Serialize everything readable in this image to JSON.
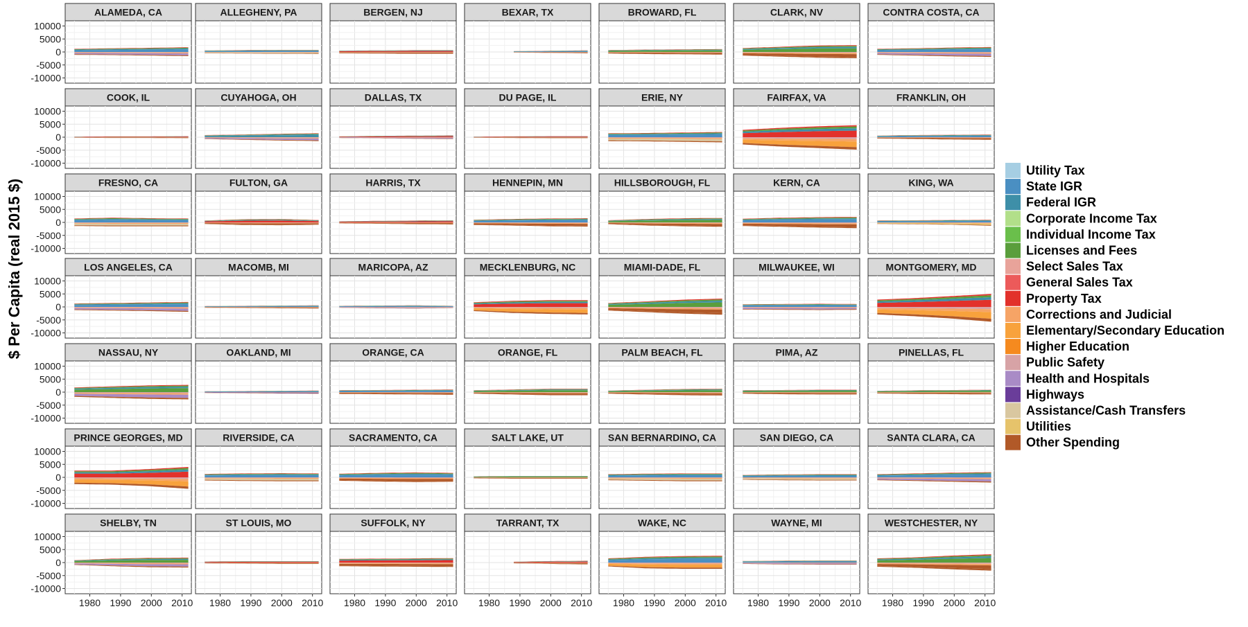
{
  "chart_data": {
    "type": "area",
    "ylabel": "$ Per Capita (real 2015 $)",
    "xlabel": "",
    "x_range": [
      1972,
      2013
    ],
    "x_ticks": [
      1980,
      1990,
      2000,
      2010
    ],
    "ylim": [
      -12000,
      12000
    ],
    "y_ticks": [
      10000,
      5000,
      0,
      -5000,
      -10000
    ],
    "grid": true,
    "legend_position": "right",
    "legend": [
      {
        "name": "Utility Tax",
        "color": "#a6cee3"
      },
      {
        "name": "State IGR",
        "color": "#4a8fc2"
      },
      {
        "name": "Federal IGR",
        "color": "#3e8fa8"
      },
      {
        "name": "Corporate Income Tax",
        "color": "#b2df8a"
      },
      {
        "name": "Individual Income Tax",
        "color": "#6abf4b"
      },
      {
        "name": "Licenses and Fees",
        "color": "#5a9e3c"
      },
      {
        "name": "Select Sales Tax",
        "color": "#e8a39a"
      },
      {
        "name": "General Sales Tax",
        "color": "#ec5a5a"
      },
      {
        "name": "Property Tax",
        "color": "#e2312b"
      },
      {
        "name": "Corrections and Judicial",
        "color": "#f6a466"
      },
      {
        "name": "Elementary/Secondary Education",
        "color": "#f8a23c"
      },
      {
        "name": "Higher Education",
        "color": "#f58a1f"
      },
      {
        "name": "Public Safety",
        "color": "#d7a3a6"
      },
      {
        "name": "Health and Hospitals",
        "color": "#a98bc6"
      },
      {
        "name": "Highways",
        "color": "#6a3d9a"
      },
      {
        "name": "Assistance/Cash Transfers",
        "color": "#d9c7a0"
      },
      {
        "name": "Utilities",
        "color": "#e6c36b"
      },
      {
        "name": "Other Spending",
        "color": "#b15928"
      }
    ],
    "panels": [
      {
        "title": "ALAMEDA, CA",
        "start": 1975,
        "rev": [
          1200,
          1400,
          1600,
          1800
        ],
        "spend": [
          -1100,
          -1200,
          -1400,
          -1600
        ],
        "dom_rev": "sig",
        "dom_spend": "health"
      },
      {
        "title": "ALLEGHENY, PA",
        "start": 1975,
        "rev": [
          600,
          700,
          800,
          800
        ],
        "spend": [
          -500,
          -600,
          -700,
          -800
        ],
        "dom_rev": "sig",
        "dom_spend": "assist"
      },
      {
        "title": "BERGEN, NJ",
        "start": 1975,
        "rev": [
          500,
          600,
          700,
          700
        ],
        "spend": [
          -500,
          -600,
          -700,
          -700
        ],
        "dom_rev": "prop",
        "dom_spend": "other"
      },
      {
        "title": "BEXAR, TX",
        "start": 1988,
        "rev": [
          300,
          400,
          500,
          600
        ],
        "spend": [
          -200,
          -300,
          -400,
          -500
        ],
        "dom_rev": "sig",
        "dom_spend": "other"
      },
      {
        "title": "BROWARD, FL",
        "start": 1975,
        "rev": [
          700,
          900,
          1000,
          1100
        ],
        "spend": [
          -600,
          -800,
          -900,
          -1000
        ],
        "dom_rev": "lic",
        "dom_spend": "other"
      },
      {
        "title": "CLARK, NV",
        "start": 1975,
        "rev": [
          1500,
          2000,
          2500,
          2600
        ],
        "spend": [
          -1400,
          -1800,
          -2200,
          -2400
        ],
        "dom_rev": "lic",
        "dom_spend": "other"
      },
      {
        "title": "CONTRA COSTA, CA",
        "start": 1975,
        "rev": [
          1200,
          1400,
          1700,
          1900
        ],
        "spend": [
          -1100,
          -1400,
          -1700,
          -1900
        ],
        "dom_rev": "sig",
        "dom_spend": "health"
      },
      {
        "title": "COOK, IL",
        "start": 1975,
        "rev": [
          200,
          300,
          300,
          400
        ],
        "spend": [
          -200,
          -300,
          -300,
          -400
        ],
        "dom_rev": "prop",
        "dom_spend": "other"
      },
      {
        "title": "CUYAHOGA, OH",
        "start": 1975,
        "rev": [
          800,
          1000,
          1300,
          1500
        ],
        "spend": [
          -700,
          -1000,
          -1300,
          -1500
        ],
        "dom_rev": "fig",
        "dom_spend": "health"
      },
      {
        "title": "DALLAS, TX",
        "start": 1975,
        "rev": [
          300,
          500,
          600,
          700
        ],
        "spend": [
          -300,
          -400,
          -600,
          -700
        ],
        "dom_rev": "prop",
        "dom_spend": "health"
      },
      {
        "title": "DU PAGE, IL",
        "start": 1975,
        "rev": [
          200,
          300,
          400,
          400
        ],
        "spend": [
          -200,
          -300,
          -400,
          -400
        ],
        "dom_rev": "prop",
        "dom_spend": "other"
      },
      {
        "title": "ERIE, NY",
        "start": 1975,
        "rev": [
          1500,
          1600,
          1800,
          2000
        ],
        "spend": [
          -1500,
          -1600,
          -1800,
          -2000
        ],
        "dom_rev": "sig",
        "dom_spend": "assist"
      },
      {
        "title": "FAIRFAX, VA",
        "start": 1975,
        "rev": [
          2800,
          3600,
          4200,
          4600
        ],
        "spend": [
          -2800,
          -3600,
          -4200,
          -4800
        ],
        "dom_rev": "prop",
        "dom_spend": "educ"
      },
      {
        "title": "FRANKLIN, OH",
        "start": 1975,
        "rev": [
          600,
          800,
          900,
          1000
        ],
        "spend": [
          -500,
          -700,
          -900,
          -1000
        ],
        "dom_rev": "sig",
        "dom_spend": "other"
      },
      {
        "title": "FRESNO, CA",
        "start": 1975,
        "rev": [
          1500,
          1800,
          1600,
          1500
        ],
        "spend": [
          -1400,
          -1500,
          -1500,
          -1500
        ],
        "dom_rev": "sig",
        "dom_spend": "assist"
      },
      {
        "title": "FULTON, GA",
        "start": 1975,
        "rev": [
          700,
          1200,
          1300,
          900
        ],
        "spend": [
          -600,
          -1000,
          -1100,
          -900
        ],
        "dom_rev": "prop",
        "dom_spend": "other"
      },
      {
        "title": "HARRIS, TX",
        "start": 1975,
        "rev": [
          400,
          600,
          700,
          800
        ],
        "spend": [
          -400,
          -500,
          -700,
          -800
        ],
        "dom_rev": "prop",
        "dom_spend": "other"
      },
      {
        "title": "HENNEPIN, MN",
        "start": 1975,
        "rev": [
          1000,
          1300,
          1500,
          1600
        ],
        "spend": [
          -1000,
          -1200,
          -1500,
          -1600
        ],
        "dom_rev": "sig",
        "dom_spend": "other"
      },
      {
        "title": "HILLSBOROUGH, FL",
        "start": 1975,
        "rev": [
          800,
          1300,
          1600,
          1700
        ],
        "spend": [
          -700,
          -1200,
          -1500,
          -1700
        ],
        "dom_rev": "lic",
        "dom_spend": "other"
      },
      {
        "title": "KERN, CA",
        "start": 1975,
        "rev": [
          1400,
          1800,
          2000,
          2100
        ],
        "spend": [
          -1400,
          -1700,
          -2000,
          -2200
        ],
        "dom_rev": "sig",
        "dom_spend": "other"
      },
      {
        "title": "KING, WA",
        "start": 1975,
        "rev": [
          700,
          800,
          900,
          1000
        ],
        "spend": [
          -600,
          -700,
          -900,
          -1300
        ],
        "dom_rev": "sig",
        "dom_spend": "util"
      },
      {
        "title": "LOS ANGELES, CA",
        "start": 1975,
        "rev": [
          1300,
          1500,
          1700,
          1900
        ],
        "spend": [
          -1200,
          -1400,
          -1600,
          -1900
        ],
        "dom_rev": "sig",
        "dom_spend": "health"
      },
      {
        "title": "MACOMB, MI",
        "start": 1975,
        "rev": [
          300,
          400,
          500,
          600
        ],
        "spend": [
          -300,
          -400,
          -500,
          -600
        ],
        "dom_rev": "sig",
        "dom_spend": "other"
      },
      {
        "title": "MARICOPA, AZ",
        "start": 1975,
        "rev": [
          400,
          500,
          600,
          400
        ],
        "spend": [
          -300,
          -500,
          -600,
          -400
        ],
        "dom_rev": "sig",
        "dom_spend": "health"
      },
      {
        "title": "MECKLENBURG, NC",
        "start": 1975,
        "rev": [
          1800,
          2300,
          2600,
          2600
        ],
        "spend": [
          -1600,
          -2300,
          -2700,
          -2900
        ],
        "dom_rev": "prop",
        "dom_spend": "educ"
      },
      {
        "title": "MIAMI-DADE, FL",
        "start": 1975,
        "rev": [
          1500,
          2100,
          2800,
          3200
        ],
        "spend": [
          -1400,
          -2000,
          -2600,
          -3000
        ],
        "dom_rev": "lic",
        "dom_spend": "other"
      },
      {
        "title": "MILWAUKEE, WI",
        "start": 1975,
        "rev": [
          1000,
          1100,
          1200,
          1100
        ],
        "spend": [
          -1000,
          -1100,
          -1200,
          -1100
        ],
        "dom_rev": "sig",
        "dom_spend": "health"
      },
      {
        "title": "MONTGOMERY, MD",
        "start": 1975,
        "rev": [
          2800,
          3400,
          4200,
          5000
        ],
        "spend": [
          -2900,
          -3600,
          -4500,
          -5700
        ],
        "dom_rev": "prop",
        "dom_spend": "educ"
      },
      {
        "title": "NASSAU, NY",
        "start": 1975,
        "rev": [
          1800,
          2200,
          2600,
          2800
        ],
        "spend": [
          -1800,
          -2200,
          -2600,
          -2800
        ],
        "dom_rev": "lic",
        "dom_spend": "health"
      },
      {
        "title": "OAKLAND, MI",
        "start": 1975,
        "rev": [
          300,
          400,
          500,
          600
        ],
        "spend": [
          -300,
          -400,
          -500,
          -600
        ],
        "dom_rev": "sig",
        "dom_spend": "hwy"
      },
      {
        "title": "ORANGE, CA",
        "start": 1975,
        "rev": [
          700,
          800,
          900,
          1000
        ],
        "spend": [
          -700,
          -800,
          -900,
          -1000
        ],
        "dom_rev": "sig",
        "dom_spend": "other"
      },
      {
        "title": "ORANGE, FL",
        "start": 1975,
        "rev": [
          700,
          1000,
          1300,
          1300
        ],
        "spend": [
          -600,
          -900,
          -1200,
          -1200
        ],
        "dom_rev": "lic",
        "dom_spend": "other"
      },
      {
        "title": "PALM BEACH, FL",
        "start": 1975,
        "rev": [
          600,
          900,
          1200,
          1300
        ],
        "spend": [
          -600,
          -900,
          -1200,
          -1300
        ],
        "dom_rev": "lic",
        "dom_spend": "other"
      },
      {
        "title": "PIMA, AZ",
        "start": 1975,
        "rev": [
          700,
          800,
          900,
          900
        ],
        "spend": [
          -600,
          -800,
          -900,
          -900
        ],
        "dom_rev": "lic",
        "dom_spend": "other"
      },
      {
        "title": "PINELLAS, FL",
        "start": 1975,
        "rev": [
          500,
          700,
          800,
          900
        ],
        "spend": [
          -500,
          -700,
          -800,
          -900
        ],
        "dom_rev": "lic",
        "dom_spend": "other"
      },
      {
        "title": "PRINCE GEORGES, MD",
        "start": 1975,
        "rev": [
          2600,
          2600,
          3200,
          4000
        ],
        "spend": [
          -2600,
          -2800,
          -3400,
          -4400
        ],
        "dom_rev": "prop",
        "dom_spend": "educ"
      },
      {
        "title": "RIVERSIDE, CA",
        "start": 1975,
        "rev": [
          1300,
          1500,
          1600,
          1500
        ],
        "spend": [
          -1200,
          -1400,
          -1500,
          -1500
        ],
        "dom_rev": "sig",
        "dom_spend": "assist"
      },
      {
        "title": "SACRAMENTO, CA",
        "start": 1975,
        "rev": [
          1400,
          1700,
          1900,
          1700
        ],
        "spend": [
          -1300,
          -1600,
          -1800,
          -1700
        ],
        "dom_rev": "sig",
        "dom_spend": "other"
      },
      {
        "title": "SALT LAKE, UT",
        "start": 1975,
        "rev": [
          400,
          500,
          500,
          500
        ],
        "spend": [
          -400,
          -500,
          -500,
          -500
        ],
        "dom_rev": "lic",
        "dom_spend": "other"
      },
      {
        "title": "SAN BERNARDINO, CA",
        "start": 1975,
        "rev": [
          1200,
          1400,
          1500,
          1500
        ],
        "spend": [
          -1100,
          -1300,
          -1500,
          -1500
        ],
        "dom_rev": "sig",
        "dom_spend": "assist"
      },
      {
        "title": "SAN DIEGO, CA",
        "start": 1975,
        "rev": [
          900,
          1100,
          1200,
          1200
        ],
        "spend": [
          -900,
          -1100,
          -1200,
          -1200
        ],
        "dom_rev": "sig",
        "dom_spend": "assist"
      },
      {
        "title": "SANTA CLARA, CA",
        "start": 1975,
        "rev": [
          1200,
          1500,
          1800,
          2000
        ],
        "spend": [
          -1100,
          -1400,
          -1700,
          -2000
        ],
        "dom_rev": "sig",
        "dom_spend": "health"
      },
      {
        "title": "SHELBY, TN",
        "start": 1975,
        "rev": [
          900,
          1500,
          1800,
          1900
        ],
        "spend": [
          -900,
          -1400,
          -1800,
          -1900
        ],
        "dom_rev": "lic",
        "dom_spend": "health"
      },
      {
        "title": "ST LOUIS, MO",
        "start": 1975,
        "rev": [
          400,
          500,
          500,
          500
        ],
        "spend": [
          -300,
          -400,
          -500,
          -500
        ],
        "dom_rev": "prop",
        "dom_spend": "other"
      },
      {
        "title": "SUFFOLK, NY",
        "start": 1975,
        "rev": [
          1400,
          1500,
          1600,
          1700
        ],
        "spend": [
          -1400,
          -1500,
          -1600,
          -1700
        ],
        "dom_rev": "prop",
        "dom_spend": "other"
      },
      {
        "title": "TARRANT, TX",
        "start": 1988,
        "rev": [
          300,
          500,
          600,
          700
        ],
        "spend": [
          -300,
          -400,
          -600,
          -700
        ],
        "dom_rev": "prop",
        "dom_spend": "other"
      },
      {
        "title": "WAKE, NC",
        "start": 1975,
        "rev": [
          1600,
          2200,
          2500,
          2600
        ],
        "spend": [
          -1500,
          -2200,
          -2400,
          -2400
        ],
        "dom_rev": "sig",
        "dom_spend": "educ"
      },
      {
        "title": "WAYNE, MI",
        "start": 1975,
        "rev": [
          600,
          700,
          800,
          800
        ],
        "spend": [
          -500,
          -700,
          -800,
          -800
        ],
        "dom_rev": "sig",
        "dom_spend": "health"
      },
      {
        "title": "WESTCHESTER, NY",
        "start": 1975,
        "rev": [
          1600,
          2000,
          2700,
          3200
        ],
        "spend": [
          -1600,
          -2000,
          -2600,
          -3100
        ],
        "dom_rev": "lic",
        "dom_spend": "other"
      }
    ]
  }
}
